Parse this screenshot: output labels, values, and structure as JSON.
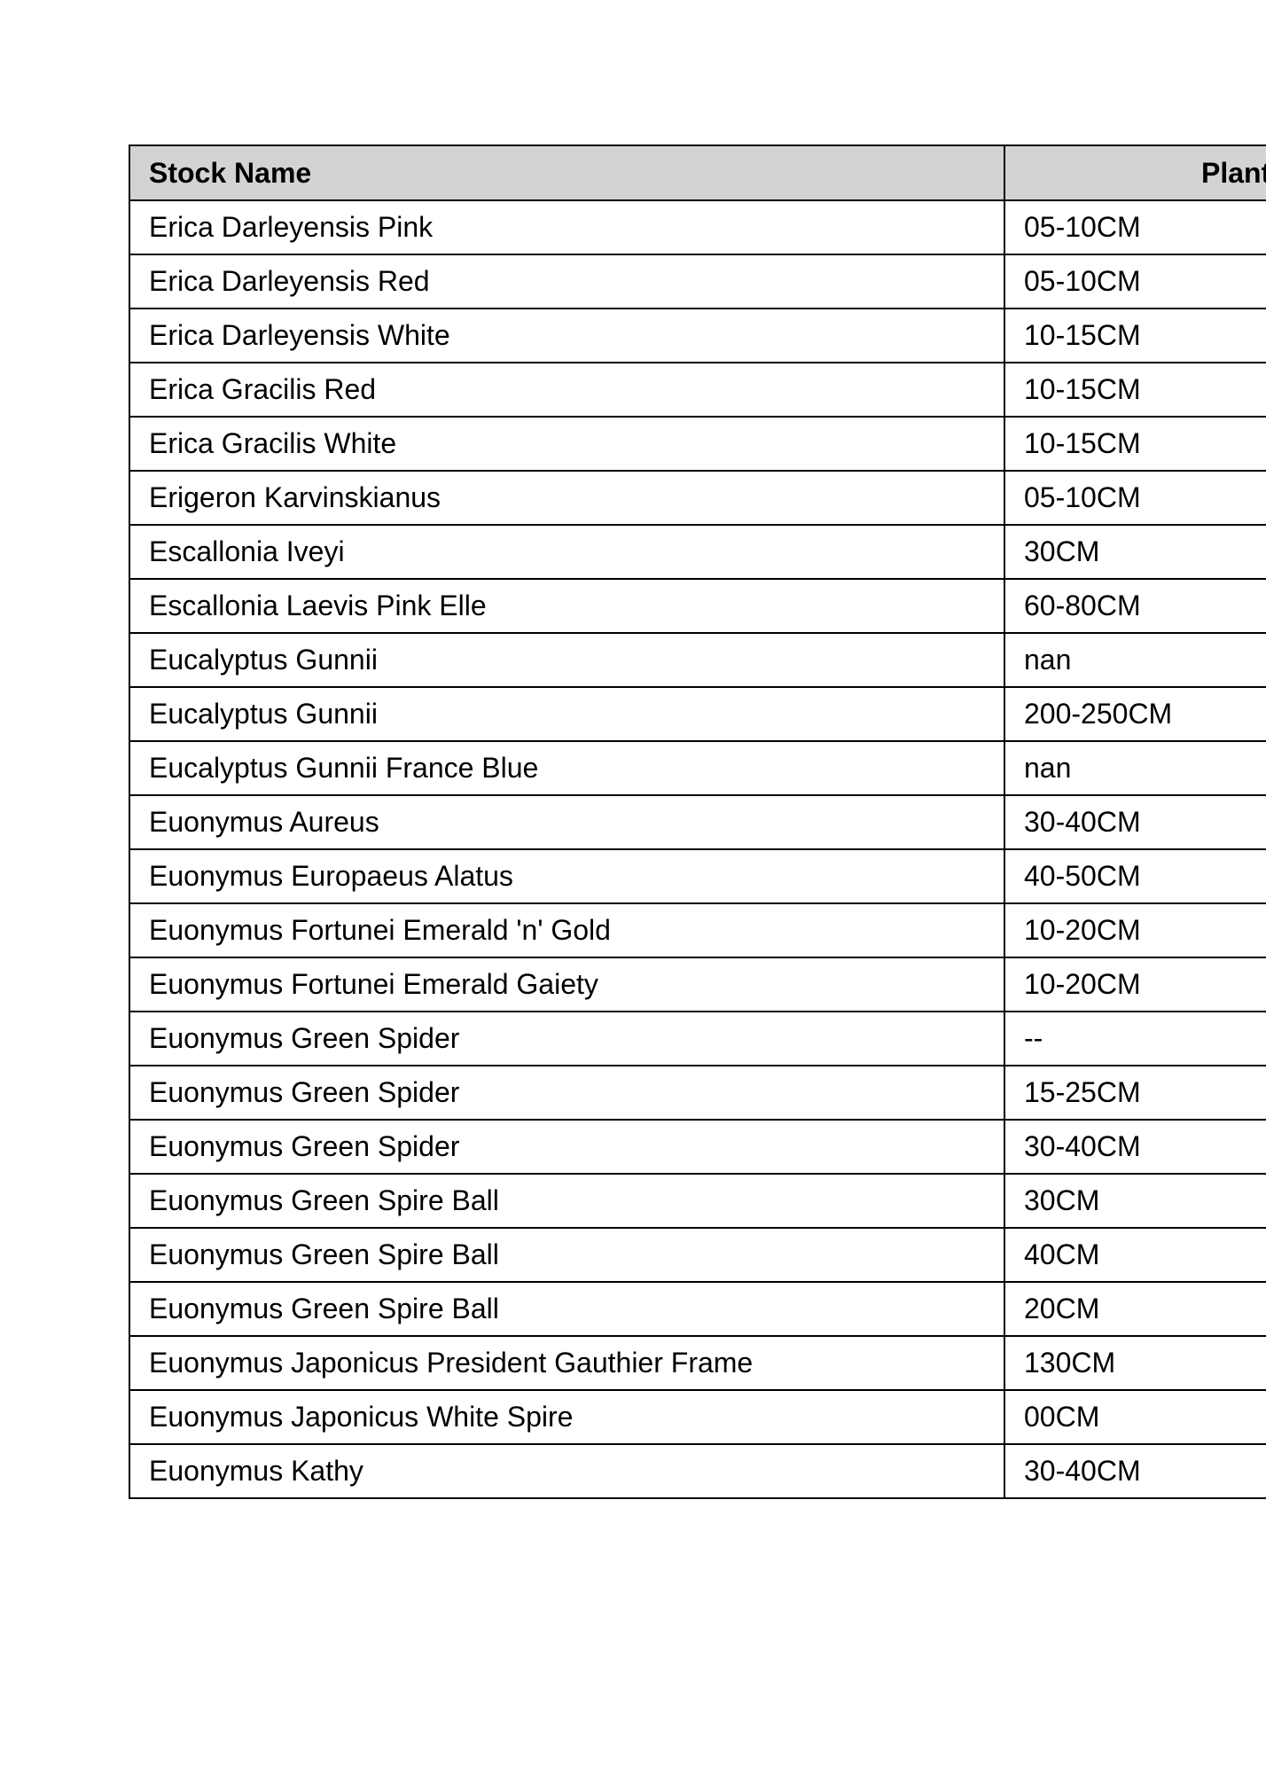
{
  "colors": {
    "page_bg": "#ffffff",
    "header_bg": "#d3d3d3",
    "border": "#000000",
    "text": "#000000"
  },
  "table": {
    "columns": [
      {
        "label": "Stock Name"
      },
      {
        "label": "Plant",
        "clipped_at_right_edge": true
      }
    ],
    "rows": [
      {
        "stock_name": "Erica Darleyensis Pink",
        "plant_size": "05-10CM"
      },
      {
        "stock_name": "Erica Darleyensis Red",
        "plant_size": "05-10CM"
      },
      {
        "stock_name": "Erica Darleyensis White",
        "plant_size": "10-15CM"
      },
      {
        "stock_name": "Erica Gracilis Red",
        "plant_size": "10-15CM"
      },
      {
        "stock_name": "Erica Gracilis White",
        "plant_size": "10-15CM"
      },
      {
        "stock_name": "Erigeron Karvinskianus",
        "plant_size": "05-10CM"
      },
      {
        "stock_name": "Escallonia Iveyi",
        "plant_size": "30CM"
      },
      {
        "stock_name": "Escallonia Laevis Pink Elle",
        "plant_size": "60-80CM"
      },
      {
        "stock_name": "Eucalyptus Gunnii",
        "plant_size": "nan"
      },
      {
        "stock_name": "Eucalyptus Gunnii",
        "plant_size": "200-250CM"
      },
      {
        "stock_name": "Eucalyptus Gunnii France Blue",
        "plant_size": "nan"
      },
      {
        "stock_name": "Euonymus Aureus",
        "plant_size": "30-40CM"
      },
      {
        "stock_name": "Euonymus Europaeus Alatus",
        "plant_size": "40-50CM"
      },
      {
        "stock_name": "Euonymus Fortunei Emerald 'n' Gold",
        "plant_size": "10-20CM"
      },
      {
        "stock_name": "Euonymus Fortunei Emerald Gaiety",
        "plant_size": "10-20CM"
      },
      {
        "stock_name": "Euonymus Green Spider",
        "plant_size": "--"
      },
      {
        "stock_name": "Euonymus Green Spider",
        "plant_size": "15-25CM"
      },
      {
        "stock_name": "Euonymus Green Spider",
        "plant_size": "30-40CM"
      },
      {
        "stock_name": "Euonymus Green Spire Ball",
        "plant_size": "30CM"
      },
      {
        "stock_name": "Euonymus Green Spire Ball",
        "plant_size": "40CM"
      },
      {
        "stock_name": "Euonymus Green Spire Ball",
        "plant_size": "20CM"
      },
      {
        "stock_name": "Euonymus Japonicus President Gauthier Frame",
        "plant_size": "130CM"
      },
      {
        "stock_name": "Euonymus Japonicus White Spire",
        "plant_size": "00CM"
      },
      {
        "stock_name": "Euonymus Kathy",
        "plant_size": "30-40CM"
      }
    ]
  }
}
